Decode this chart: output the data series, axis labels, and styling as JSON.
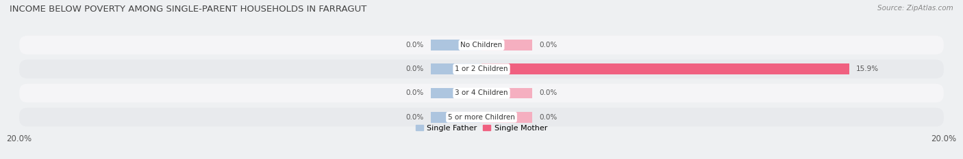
{
  "title": "INCOME BELOW POVERTY AMONG SINGLE-PARENT HOUSEHOLDS IN FARRAGUT",
  "source": "Source: ZipAtlas.com",
  "categories": [
    "No Children",
    "1 or 2 Children",
    "3 or 4 Children",
    "5 or more Children"
  ],
  "single_father": [
    0.0,
    0.0,
    0.0,
    0.0
  ],
  "single_mother": [
    0.0,
    15.9,
    0.0,
    0.0
  ],
  "father_color": "#9ab4d4",
  "mother_color_full": "#f06080",
  "mother_color_light": "#f5afc0",
  "father_color_stub": "#adc5df",
  "bg_color": "#eef0f2",
  "row_color_light": "#f5f5f7",
  "row_color_dark": "#e8eaed",
  "xlim": 20.0,
  "title_fontsize": 9.5,
  "source_fontsize": 7.5,
  "label_fontsize": 7.5,
  "tick_fontsize": 8.5,
  "legend_fontsize": 8,
  "stub_size": 2.2
}
